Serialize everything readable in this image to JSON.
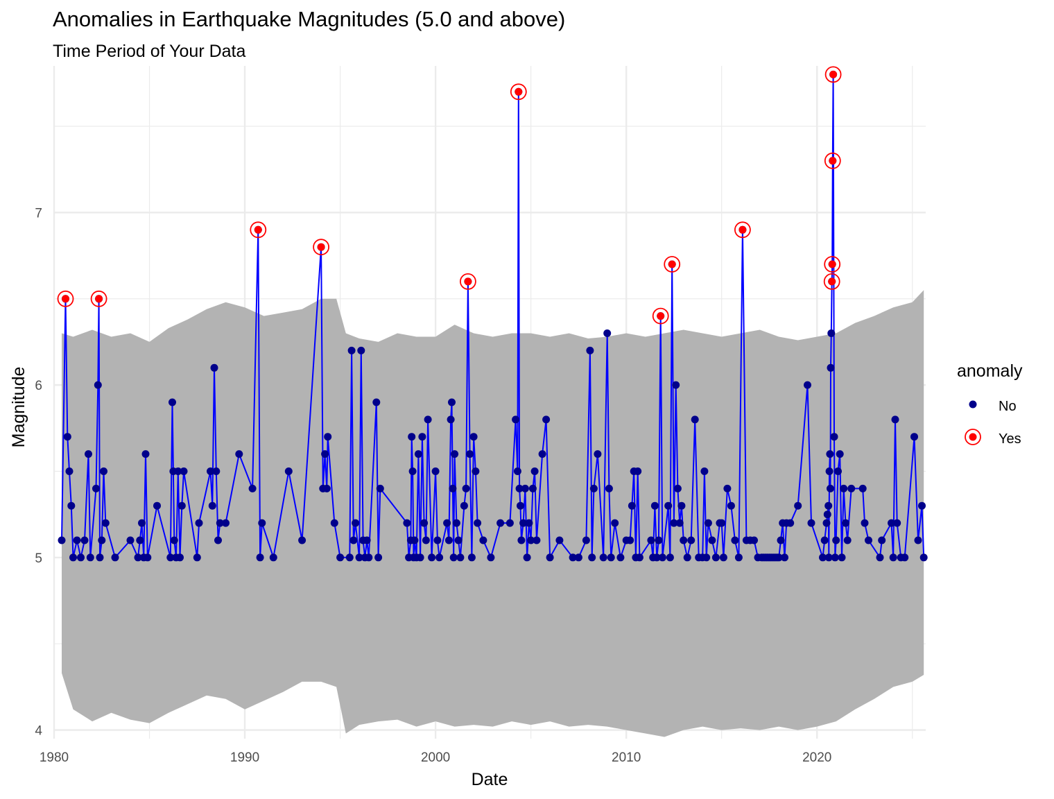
{
  "chart_data": {
    "type": "line",
    "title": "Anomalies in Earthquake Magnitudes (5.0 and above)",
    "subtitle": "Time Period of Your Data",
    "xlabel": "Date",
    "ylabel": "Magnitude",
    "x_ticks": [
      "1980",
      "1990",
      "2000",
      "2010",
      "2020"
    ],
    "y_ticks": [
      "4",
      "5",
      "6",
      "7"
    ],
    "xlim": [
      1980.0,
      2025.7
    ],
    "ylim": [
      3.95,
      7.85
    ],
    "grid": true,
    "legend": {
      "title": "anomaly",
      "position": "right",
      "entries": [
        {
          "label": "No",
          "color": "#00008b"
        },
        {
          "label": "Yes",
          "color": "#ff0000"
        }
      ]
    },
    "colors": {
      "line": "#0000ff",
      "point_normal": "#00008b",
      "point_anomaly": "#ff0000",
      "ribbon": "#b3b3b3",
      "grid": "#ebebeb"
    },
    "series": [
      {
        "values": [
          [
            1980.4,
            5.1
          ],
          [
            1980.6,
            6.5
          ],
          [
            1980.7,
            5.7
          ],
          [
            1980.8,
            5.5
          ],
          [
            1980.9,
            5.3
          ],
          [
            1981.0,
            5.0
          ],
          [
            1981.2,
            5.1
          ],
          [
            1981.4,
            5.0
          ],
          [
            1981.6,
            5.1
          ],
          [
            1981.8,
            5.6
          ],
          [
            1981.9,
            5.0
          ],
          [
            1982.2,
            5.4
          ],
          [
            1982.3,
            6.0
          ],
          [
            1982.35,
            6.5
          ],
          [
            1982.4,
            5.0
          ],
          [
            1982.5,
            5.1
          ],
          [
            1982.6,
            5.5
          ],
          [
            1982.7,
            5.2
          ],
          [
            1983.2,
            5.0
          ],
          [
            1984.0,
            5.1
          ],
          [
            1984.4,
            5.0
          ],
          [
            1984.5,
            5.1
          ],
          [
            1984.6,
            5.2
          ],
          [
            1984.7,
            5.0
          ],
          [
            1984.8,
            5.6
          ],
          [
            1984.9,
            5.0
          ],
          [
            1985.4,
            5.3
          ],
          [
            1986.1,
            5.0
          ],
          [
            1986.2,
            5.9
          ],
          [
            1986.25,
            5.5
          ],
          [
            1986.3,
            5.1
          ],
          [
            1986.4,
            5.0
          ],
          [
            1986.5,
            5.5
          ],
          [
            1986.6,
            5.0
          ],
          [
            1986.7,
            5.3
          ],
          [
            1986.8,
            5.5
          ],
          [
            1987.5,
            5.0
          ],
          [
            1987.6,
            5.2
          ],
          [
            1988.2,
            5.5
          ],
          [
            1988.3,
            5.3
          ],
          [
            1988.4,
            6.1
          ],
          [
            1988.5,
            5.5
          ],
          [
            1988.6,
            5.1
          ],
          [
            1988.7,
            5.2
          ],
          [
            1989.0,
            5.2
          ],
          [
            1989.7,
            5.6
          ],
          [
            1990.4,
            5.4
          ],
          [
            1990.7,
            6.9
          ],
          [
            1990.8,
            5.0
          ],
          [
            1990.9,
            5.2
          ],
          [
            1991.5,
            5.0
          ],
          [
            1992.3,
            5.5
          ],
          [
            1993.0,
            5.1
          ],
          [
            1994.0,
            6.8
          ],
          [
            1994.1,
            5.4
          ],
          [
            1994.2,
            5.6
          ],
          [
            1994.3,
            5.4
          ],
          [
            1994.35,
            5.7
          ],
          [
            1994.7,
            5.2
          ],
          [
            1995.0,
            5.0
          ],
          [
            1995.5,
            5.0
          ],
          [
            1995.6,
            6.2
          ],
          [
            1995.7,
            5.1
          ],
          [
            1995.8,
            5.2
          ],
          [
            1996.0,
            5.0
          ],
          [
            1996.1,
            6.2
          ],
          [
            1996.2,
            5.1
          ],
          [
            1996.3,
            5.0
          ],
          [
            1996.4,
            5.1
          ],
          [
            1996.5,
            5.0
          ],
          [
            1996.9,
            5.9
          ],
          [
            1997.0,
            5.0
          ],
          [
            1997.1,
            5.4
          ],
          [
            1998.5,
            5.2
          ],
          [
            1998.6,
            5.0
          ],
          [
            1998.7,
            5.1
          ],
          [
            1998.75,
            5.7
          ],
          [
            1998.8,
            5.5
          ],
          [
            1998.85,
            5.0
          ],
          [
            1998.9,
            5.1
          ],
          [
            1999.0,
            5.0
          ],
          [
            1999.1,
            5.6
          ],
          [
            1999.2,
            5.0
          ],
          [
            1999.3,
            5.7
          ],
          [
            1999.4,
            5.2
          ],
          [
            1999.5,
            5.1
          ],
          [
            1999.6,
            5.8
          ],
          [
            1999.8,
            5.0
          ],
          [
            2000.0,
            5.5
          ],
          [
            2000.1,
            5.1
          ],
          [
            2000.2,
            5.0
          ],
          [
            2000.6,
            5.2
          ],
          [
            2000.7,
            5.1
          ],
          [
            2000.8,
            5.8
          ],
          [
            2000.85,
            5.9
          ],
          [
            2000.9,
            5.4
          ],
          [
            2000.95,
            5.0
          ],
          [
            2001.0,
            5.6
          ],
          [
            2001.1,
            5.2
          ],
          [
            2001.2,
            5.1
          ],
          [
            2001.3,
            5.0
          ],
          [
            2001.5,
            5.3
          ],
          [
            2001.6,
            5.4
          ],
          [
            2001.7,
            6.6
          ],
          [
            2001.8,
            5.6
          ],
          [
            2001.9,
            5.0
          ],
          [
            2002.0,
            5.7
          ],
          [
            2002.1,
            5.5
          ],
          [
            2002.2,
            5.2
          ],
          [
            2002.5,
            5.1
          ],
          [
            2002.9,
            5.0
          ],
          [
            2003.4,
            5.2
          ],
          [
            2003.9,
            5.2
          ],
          [
            2004.2,
            5.8
          ],
          [
            2004.3,
            5.5
          ],
          [
            2004.35,
            7.7
          ],
          [
            2004.4,
            5.4
          ],
          [
            2004.45,
            5.3
          ],
          [
            2004.5,
            5.1
          ],
          [
            2004.6,
            5.2
          ],
          [
            2004.7,
            5.4
          ],
          [
            2004.8,
            5.0
          ],
          [
            2004.9,
            5.2
          ],
          [
            2005.0,
            5.1
          ],
          [
            2005.1,
            5.4
          ],
          [
            2005.2,
            5.5
          ],
          [
            2005.3,
            5.1
          ],
          [
            2005.6,
            5.6
          ],
          [
            2005.8,
            5.8
          ],
          [
            2006.0,
            5.0
          ],
          [
            2006.5,
            5.1
          ],
          [
            2007.2,
            5.0
          ],
          [
            2007.5,
            5.0
          ],
          [
            2007.9,
            5.1
          ],
          [
            2008.1,
            6.2
          ],
          [
            2008.2,
            5.0
          ],
          [
            2008.3,
            5.4
          ],
          [
            2008.5,
            5.6
          ],
          [
            2008.8,
            5.0
          ],
          [
            2009.0,
            6.3
          ],
          [
            2009.1,
            5.4
          ],
          [
            2009.2,
            5.0
          ],
          [
            2009.4,
            5.2
          ],
          [
            2009.7,
            5.0
          ],
          [
            2010.0,
            5.1
          ],
          [
            2010.2,
            5.1
          ],
          [
            2010.3,
            5.3
          ],
          [
            2010.4,
            5.5
          ],
          [
            2010.5,
            5.0
          ],
          [
            2010.6,
            5.5
          ],
          [
            2010.7,
            5.0
          ],
          [
            2011.3,
            5.1
          ],
          [
            2011.4,
            5.0
          ],
          [
            2011.5,
            5.3
          ],
          [
            2011.6,
            5.0
          ],
          [
            2011.7,
            5.1
          ],
          [
            2011.8,
            6.4
          ],
          [
            2011.9,
            5.0
          ],
          [
            2012.2,
            5.3
          ],
          [
            2012.3,
            5.0
          ],
          [
            2012.4,
            6.7
          ],
          [
            2012.5,
            5.2
          ],
          [
            2012.6,
            6.0
          ],
          [
            2012.7,
            5.4
          ],
          [
            2012.8,
            5.2
          ],
          [
            2012.9,
            5.3
          ],
          [
            2013.0,
            5.1
          ],
          [
            2013.2,
            5.0
          ],
          [
            2013.4,
            5.1
          ],
          [
            2013.6,
            5.8
          ],
          [
            2013.8,
            5.0
          ],
          [
            2014.0,
            5.0
          ],
          [
            2014.1,
            5.5
          ],
          [
            2014.2,
            5.0
          ],
          [
            2014.3,
            5.2
          ],
          [
            2014.5,
            5.1
          ],
          [
            2014.7,
            5.0
          ],
          [
            2014.9,
            5.2
          ],
          [
            2015.0,
            5.2
          ],
          [
            2015.1,
            5.0
          ],
          [
            2015.3,
            5.4
          ],
          [
            2015.5,
            5.3
          ],
          [
            2015.7,
            5.1
          ],
          [
            2015.9,
            5.0
          ],
          [
            2016.1,
            6.9
          ],
          [
            2016.3,
            5.1
          ],
          [
            2016.5,
            5.1
          ],
          [
            2016.7,
            5.1
          ],
          [
            2016.9,
            5.0
          ],
          [
            2017.1,
            5.0
          ],
          [
            2017.2,
            5.0
          ],
          [
            2017.3,
            5.0
          ],
          [
            2017.4,
            5.0
          ],
          [
            2017.5,
            5.0
          ],
          [
            2017.6,
            5.0
          ],
          [
            2017.7,
            5.0
          ],
          [
            2017.8,
            5.0
          ],
          [
            2017.9,
            5.0
          ],
          [
            2018.0,
            5.0
          ],
          [
            2018.1,
            5.1
          ],
          [
            2018.2,
            5.2
          ],
          [
            2018.3,
            5.0
          ],
          [
            2018.4,
            5.2
          ],
          [
            2018.6,
            5.2
          ],
          [
            2019.0,
            5.3
          ],
          [
            2019.5,
            6.0
          ],
          [
            2019.7,
            5.2
          ],
          [
            2020.3,
            5.0
          ],
          [
            2020.4,
            5.1
          ],
          [
            2020.5,
            5.2
          ],
          [
            2020.55,
            5.25
          ],
          [
            2020.6,
            5.3
          ],
          [
            2020.62,
            5.0
          ],
          [
            2020.65,
            5.5
          ],
          [
            2020.68,
            5.6
          ],
          [
            2020.7,
            5.4
          ],
          [
            2020.72,
            6.1
          ],
          [
            2020.75,
            6.3
          ],
          [
            2020.78,
            6.6
          ],
          [
            2020.8,
            6.7
          ],
          [
            2020.82,
            7.3
          ],
          [
            2020.85,
            7.8
          ],
          [
            2020.9,
            5.7
          ],
          [
            2020.95,
            5.0
          ],
          [
            2021.0,
            5.1
          ],
          [
            2021.1,
            5.5
          ],
          [
            2021.2,
            5.6
          ],
          [
            2021.3,
            5.0
          ],
          [
            2021.4,
            5.4
          ],
          [
            2021.5,
            5.2
          ],
          [
            2021.6,
            5.1
          ],
          [
            2021.8,
            5.4
          ],
          [
            2022.4,
            5.4
          ],
          [
            2022.5,
            5.2
          ],
          [
            2022.7,
            5.1
          ],
          [
            2023.3,
            5.0
          ],
          [
            2023.4,
            5.1
          ],
          [
            2023.9,
            5.2
          ],
          [
            2024.0,
            5.0
          ],
          [
            2024.1,
            5.8
          ],
          [
            2024.2,
            5.2
          ],
          [
            2024.4,
            5.0
          ],
          [
            2024.6,
            5.0
          ],
          [
            2025.1,
            5.7
          ],
          [
            2025.3,
            5.1
          ],
          [
            2025.5,
            5.3
          ],
          [
            2025.6,
            5.0
          ]
        ]
      }
    ],
    "anomalies": [
      [
        1980.6,
        6.5
      ],
      [
        1982.35,
        6.5
      ],
      [
        1990.7,
        6.9
      ],
      [
        1994.0,
        6.8
      ],
      [
        2001.7,
        6.6
      ],
      [
        2004.35,
        7.7
      ],
      [
        2011.8,
        6.4
      ],
      [
        2012.4,
        6.7
      ],
      [
        2016.1,
        6.9
      ],
      [
        2020.78,
        6.6
      ],
      [
        2020.8,
        6.7
      ],
      [
        2020.82,
        7.3
      ],
      [
        2020.85,
        7.8
      ]
    ],
    "ribbon": {
      "x": [
        1980.4,
        1981.0,
        1982.0,
        1983.0,
        1984.0,
        1985.0,
        1986.0,
        1987.0,
        1988.0,
        1989.0,
        1990.0,
        1991.0,
        1992.0,
        1993.0,
        1994.0,
        1994.8,
        1995.3,
        1996.0,
        1997.0,
        1998.0,
        1999.0,
        2000.0,
        2001.0,
        2002.0,
        2003.0,
        2004.0,
        2005.0,
        2006.0,
        2007.0,
        2008.0,
        2009.0,
        2010.0,
        2011.0,
        2012.0,
        2013.0,
        2014.0,
        2015.0,
        2016.0,
        2017.0,
        2018.0,
        2019.0,
        2020.0,
        2021.0,
        2022.0,
        2023.0,
        2024.0,
        2025.0,
        2025.6
      ],
      "lower": [
        4.33,
        4.12,
        4.05,
        4.1,
        4.06,
        4.04,
        4.1,
        4.15,
        4.2,
        4.18,
        4.12,
        4.17,
        4.22,
        4.28,
        4.28,
        4.25,
        3.98,
        4.03,
        4.05,
        4.06,
        4.02,
        4.05,
        4.02,
        4.03,
        4.02,
        4.05,
        4.03,
        4.05,
        4.02,
        4.03,
        4.02,
        4.0,
        3.98,
        3.96,
        4.0,
        4.02,
        4.0,
        4.01,
        4.0,
        4.02,
        4.0,
        4.02,
        4.05,
        4.12,
        4.18,
        4.25,
        4.28,
        4.32
      ],
      "upper": [
        6.3,
        6.28,
        6.32,
        6.28,
        6.3,
        6.25,
        6.33,
        6.38,
        6.44,
        6.48,
        6.45,
        6.4,
        6.42,
        6.44,
        6.5,
        6.5,
        6.3,
        6.27,
        6.25,
        6.3,
        6.28,
        6.28,
        6.35,
        6.3,
        6.28,
        6.3,
        6.3,
        6.28,
        6.3,
        6.27,
        6.28,
        6.3,
        6.28,
        6.3,
        6.32,
        6.3,
        6.28,
        6.3,
        6.32,
        6.28,
        6.26,
        6.28,
        6.3,
        6.36,
        6.4,
        6.45,
        6.48,
        6.55
      ]
    }
  }
}
